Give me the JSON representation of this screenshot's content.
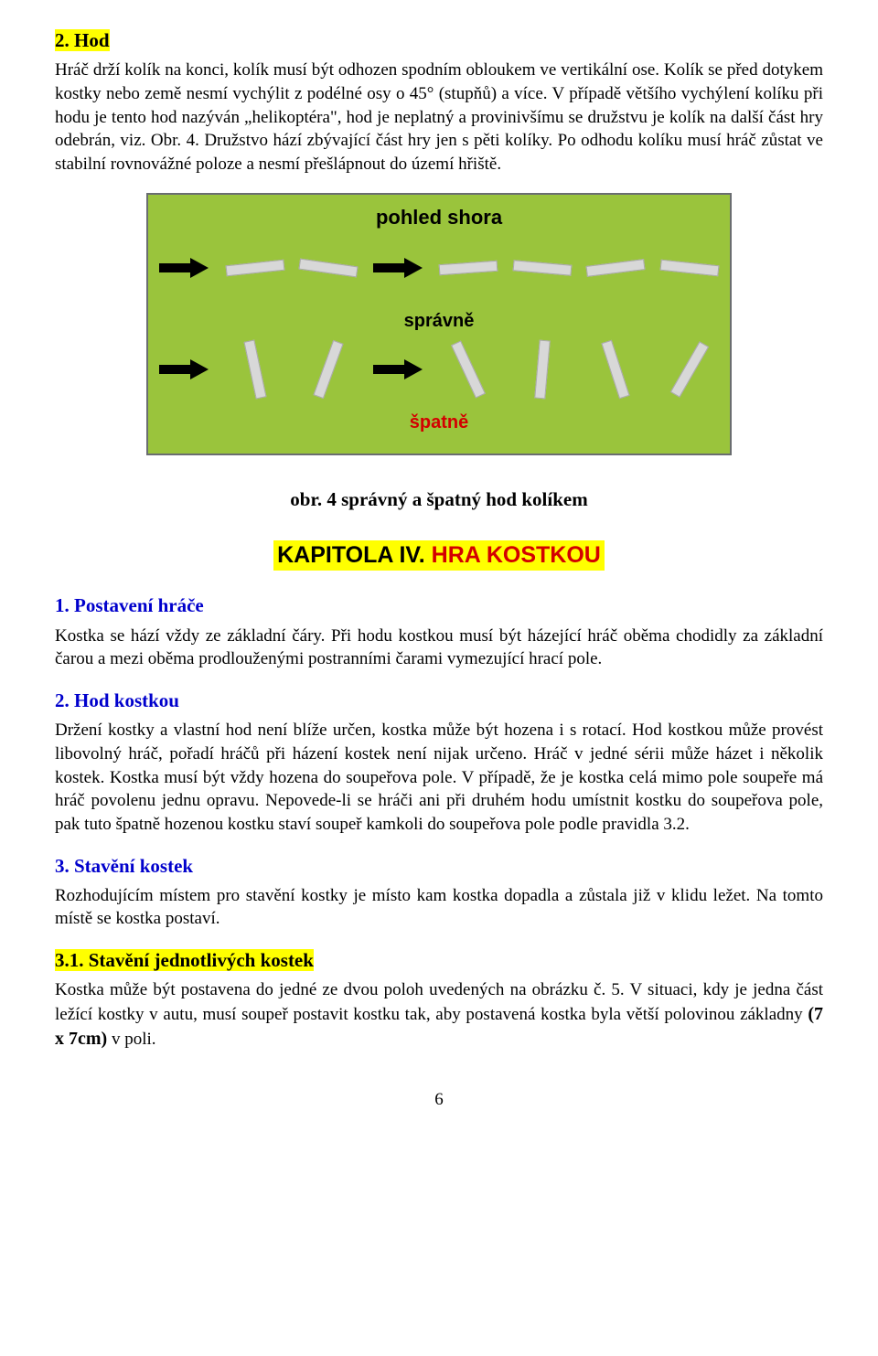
{
  "sec2": {
    "heading": "2.  Hod",
    "para": "Hráč drží kolík na konci, kolík musí být odhozen spodním obloukem ve vertikální ose. Kolík se před dotykem kostky nebo země nesmí vychýlit z podélné osy o 45° (stupňů) a více. V případě většího vychýlení kolíku při hodu je tento hod nazýván „helikoptéra\", hod je neplatný a provinivšímu se družstvu je kolík na další část hry odebrán, viz. Obr. 4. Družstvo hází zbývající část hry jen s pěti kolíky. Po odhodu kolíku musí hráč zůstat ve stabilní rovnovážné poloze a nesmí přešlápnout do území hřiště."
  },
  "figure": {
    "title": "pohled shora",
    "label_good": "správně",
    "label_bad": "špatně",
    "stick_color": "#d8d8d8",
    "bg": "#9ac43c",
    "good_angles": [
      -6,
      8,
      -4,
      5,
      -7,
      6
    ],
    "bad_angles": [
      78,
      -70,
      65,
      -85,
      72,
      -60
    ],
    "caption": "obr. 4   správný a špatný hod kolíkem"
  },
  "chapter": {
    "black": "KAPITOLA IV.",
    "red": " HRA  KOSTKOU"
  },
  "sec_p1": {
    "heading": "1.  Postavení hráče",
    "para": "Kostka se hází vždy ze základní čáry. Při hodu kostkou musí být házející hráč oběma chodidly za základní čarou a mezi oběma prodlouženými postranními čarami vymezující hrací pole."
  },
  "sec_p2": {
    "heading": "2.  Hod kostkou",
    "para": "Držení kostky a vlastní hod není blíže určen, kostka může být hozena i s rotací. Hod kostkou může provést libovolný hráč, pořadí hráčů při házení kostek není nijak určeno. Hráč v jedné sérii může házet i několik kostek. Kostka musí být vždy hozena do soupeřova pole. V případě, že je kostka celá  mimo pole soupeře má hráč povolenu jednu opravu. Nepovede-li se hráči ani při druhém hodu umístnit kostku do soupeřova pole, pak tuto špatně hozenou kostku staví soupeř kamkoli do soupeřova pole podle pravidla 3.2."
  },
  "sec_p3": {
    "heading": "3.  Stavění kostek",
    "para": "Rozhodujícím místem pro stavění kostky je místo kam kostka dopadla a zůstala již v klidu ležet. Na tomto místě se kostka postaví."
  },
  "sec_p31": {
    "heading": "3.1.  Stavění jednotlivých kostek",
    "para_a": "Kostka může být postavena do jedné ze dvou poloh uvedených na obrázku č. 5. V situaci, kdy je jedna část ležící kostky v autu, musí soupeř postavit kostku tak, aby postavená kostka byla větší polovinou základny ",
    "bold": "(7 x 7cm)",
    "para_b": " v poli."
  },
  "page": "6"
}
